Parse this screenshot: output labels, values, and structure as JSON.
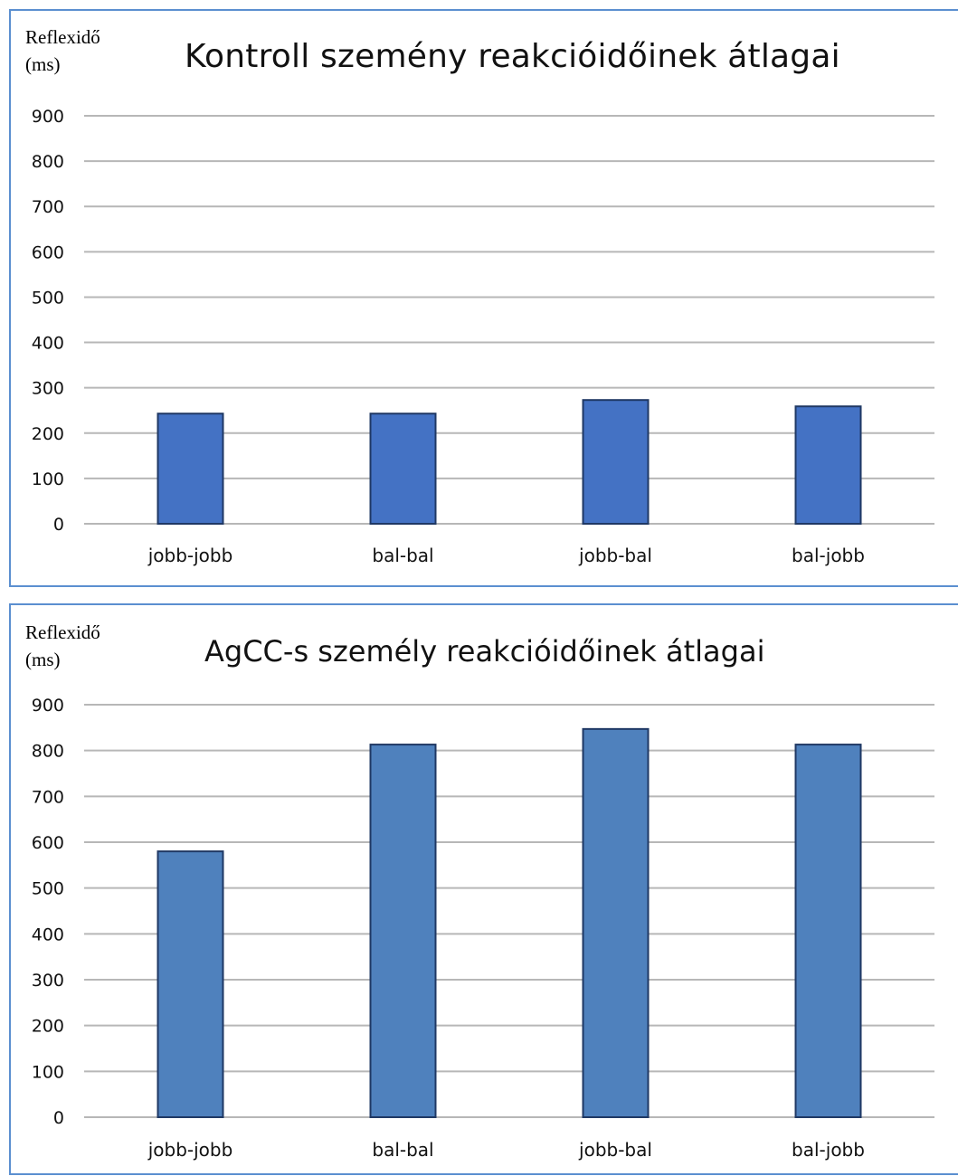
{
  "chart_data": [
    {
      "type": "bar",
      "title": "Kontroll szemény reakcióidőinek átlagai",
      "ylabel": "Reflexidő\n(ms)",
      "xlabel": "",
      "categories": [
        "jobb-jobb",
        "bal-bal",
        "jobb-bal",
        "bal-jobb"
      ],
      "values": [
        243,
        243,
        273,
        259
      ],
      "ylim": [
        0,
        900
      ],
      "yticks": [
        0,
        100,
        200,
        300,
        400,
        500,
        600,
        700,
        800,
        900
      ],
      "grid": true,
      "legend": "none",
      "bar_color": "#4472c4",
      "bar_edge_color": "#1f3864"
    },
    {
      "type": "bar",
      "title": "AgCC-s személy reakcióidőinek átlagai",
      "ylabel": "Reflexidő\n(ms)",
      "xlabel": "",
      "categories": [
        "jobb-jobb",
        "bal-bal",
        "jobb-bal",
        "bal-jobb"
      ],
      "values": [
        580,
        813,
        847,
        813
      ],
      "ylim": [
        0,
        900
      ],
      "yticks": [
        0,
        100,
        200,
        300,
        400,
        500,
        600,
        700,
        800,
        900
      ],
      "grid": true,
      "legend": "none",
      "bar_color": "#4f81bd",
      "bar_edge_color": "#1f3864"
    }
  ],
  "colors": {
    "panel_border": "#5b8fd0",
    "gridline": "#b7b7b7"
  }
}
